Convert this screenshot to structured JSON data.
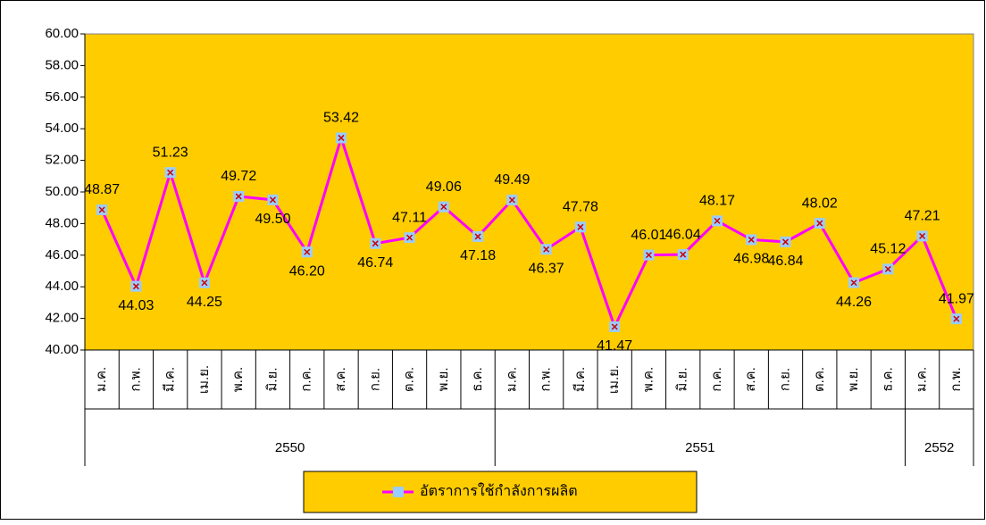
{
  "chart_data": {
    "type": "line",
    "categories": [
      "ม.ค.",
      "ก.พ.",
      "มี.ค.",
      "เม.ย.",
      "พ.ค.",
      "มิ.ย.",
      "ก.ค.",
      "ส.ค.",
      "ก.ย.",
      "ต.ค.",
      "พ.ย.",
      "ธ.ค.",
      "ม.ค.",
      "ก.พ.",
      "มี.ค.",
      "เม.ย.",
      "พ.ค.",
      "มิ.ย.",
      "ก.ค.",
      "ส.ค.",
      "ก.ย.",
      "ต.ค.",
      "พ.ย.",
      "ธ.ค.",
      "ม.ค.",
      "ก.พ."
    ],
    "groups": [
      {
        "label": "2550",
        "span": 12
      },
      {
        "label": "2551",
        "span": 12
      },
      {
        "label": "2552",
        "span": 2
      }
    ],
    "series": [
      {
        "name": "อัตราการใช้กำลังการผลิต",
        "color": "#ff00ff",
        "values": [
          48.87,
          44.03,
          51.23,
          44.25,
          49.72,
          49.5,
          46.2,
          53.42,
          46.74,
          47.11,
          49.06,
          47.18,
          49.49,
          46.37,
          47.78,
          41.47,
          46.01,
          46.04,
          48.17,
          46.98,
          46.84,
          48.02,
          44.26,
          45.12,
          47.21,
          41.97
        ],
        "value_labels": [
          "48.87",
          "44.03",
          "51.23",
          "44.25",
          "49.72",
          "49.50",
          "46.20",
          "53.42",
          "46.74",
          "47.11",
          "49.06",
          "47.18",
          "49.49",
          "46.37",
          "47.78",
          "41.47",
          "46.01",
          "46.04",
          "48.17",
          "46.98",
          "46.84",
          "48.02",
          "44.26",
          "45.12",
          "47.21",
          "41.97"
        ]
      }
    ],
    "ylim": [
      40,
      60
    ],
    "yticks": [
      {
        "value": 40,
        "label": "40.00"
      },
      {
        "value": 42,
        "label": "42.00"
      },
      {
        "value": 44,
        "label": "44.00"
      },
      {
        "value": 46,
        "label": "46.00"
      },
      {
        "value": 48,
        "label": "48.00"
      },
      {
        "value": 50,
        "label": "50.00"
      },
      {
        "value": 52,
        "label": "52.00"
      },
      {
        "value": 54,
        "label": "54.00"
      },
      {
        "value": 56,
        "label": "56.00"
      },
      {
        "value": 58,
        "label": "58.00"
      },
      {
        "value": 60,
        "label": "60.00"
      }
    ],
    "plot_background": "#ffcc00",
    "grid": false,
    "legend": "bottom"
  }
}
